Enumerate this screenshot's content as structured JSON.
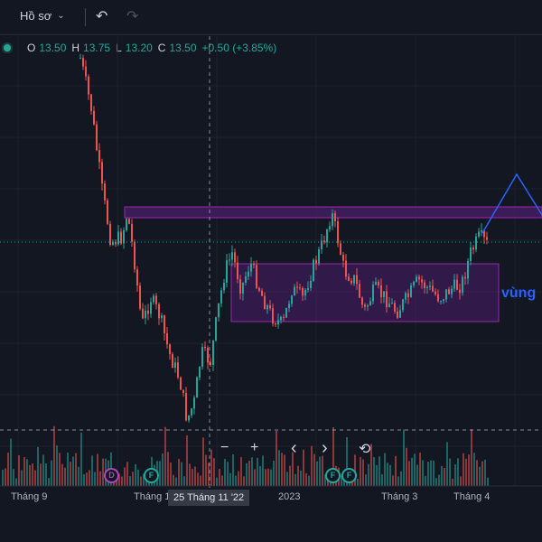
{
  "toolbar": {
    "profile": "Hồ sơ",
    "undo_icon": "undo-icon",
    "redo_icon": "redo-icon"
  },
  "ohlc": {
    "o_label": "O",
    "o_value": "13.50",
    "h_label": "H",
    "h_value": "13.75",
    "l_label": "L",
    "l_value": "13.20",
    "c_label": "C",
    "c_value": "13.50",
    "change": "+0.50 (+3.85%)"
  },
  "colors": {
    "up": "#26a69a",
    "down": "#ef5350",
    "zone_fill": "#4a1d6b",
    "zone_stroke": "#9c27b0",
    "drawing": "#2962ff",
    "bg": "#131722"
  },
  "nav": {
    "zoom_out": "−",
    "zoom_in": "+",
    "left": "‹",
    "right": "›",
    "reset": "⟲"
  },
  "xaxis": {
    "labels": [
      "Tháng 9",
      "Tháng 1",
      "25 Tháng 11 '22",
      "2023",
      "Tháng 3",
      "Tháng 4"
    ],
    "crosshair_date": "25 Tháng 11 '22"
  },
  "annotation": {
    "text": "vùng"
  },
  "events": [
    {
      "letter": "D",
      "kind": "dividend"
    },
    {
      "letter": "F",
      "kind": "financial"
    },
    {
      "letter": "F",
      "kind": "financial"
    },
    {
      "letter": "F",
      "kind": "financial"
    }
  ],
  "chart_data": {
    "type": "candlestick",
    "symbol_visible": false,
    "last": {
      "open": 13.5,
      "high": 13.75,
      "low": 13.2,
      "close": 13.5,
      "change": 0.5,
      "change_pct": 3.85
    }
  }
}
